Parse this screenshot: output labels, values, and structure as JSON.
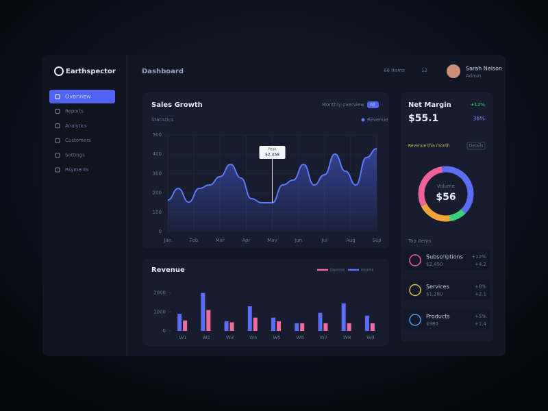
{
  "app": {
    "brand": "Earthspector",
    "page": "Dashboard",
    "status": "86 Items",
    "status_count": "12",
    "user": {
      "name": "Sarah Nelson",
      "role": "Admin"
    }
  },
  "sidebar": [
    "Overview",
    "Reports",
    "Analytics",
    "Customers",
    "Settings",
    "Payments"
  ],
  "summary": {
    "title": "Net Margin",
    "delta": "+12%",
    "value": "$55.1",
    "badge": "36%",
    "caption": "Revenue this month",
    "button": "Details",
    "list_title": "Top items"
  },
  "list": [
    {
      "name": "Subscriptions",
      "sub": "$2,450",
      "value": "+12%",
      "change": "+4.2"
    },
    {
      "name": "Services",
      "sub": "$1,280",
      "value": "+8%",
      "change": "+2.1"
    },
    {
      "name": "Products",
      "sub": "$980",
      "value": "+5%",
      "change": "+1.4"
    }
  ],
  "chart_data": [
    {
      "type": "line",
      "title": "Sales Growth",
      "subtitle": "Statistics",
      "filter": "Monthly overview",
      "button": "All",
      "x": [
        0,
        1,
        2,
        3,
        4,
        5,
        6,
        7,
        8,
        9,
        10,
        11,
        12,
        13,
        14,
        15,
        16,
        17,
        18,
        19,
        20
      ],
      "series": [
        {
          "name": "Revenue",
          "color": "#5b7cfa",
          "values": [
            163,
            223,
            152,
            223,
            241,
            284,
            348,
            277,
            170,
            149,
            149,
            241,
            266,
            348,
            241,
            294,
            401,
            312,
            241,
            383,
            429
          ]
        }
      ],
      "xlim": [
        0,
        20
      ],
      "xticks": [
        {
          "value": 0,
          "label": "Jan"
        },
        {
          "value": 2.5,
          "label": "Feb"
        },
        {
          "value": 5,
          "label": "Mar"
        },
        {
          "value": 7.5,
          "label": "Apr"
        },
        {
          "value": 10,
          "label": "May"
        },
        {
          "value": 12.5,
          "label": "Jun"
        },
        {
          "value": 15,
          "label": "Jul"
        },
        {
          "value": 17.5,
          "label": "Aug"
        },
        {
          "value": 20,
          "label": "Sep"
        }
      ],
      "ylim": [
        0,
        500
      ],
      "yticks": [
        0,
        100,
        200,
        300,
        400,
        500
      ],
      "grid": true,
      "annotation": {
        "x": 10,
        "title": "Peak",
        "text": "$2,458"
      }
    },
    {
      "type": "bar",
      "title": "Revenue",
      "categories": [
        "W1",
        "W2",
        "W3",
        "W4",
        "W5",
        "W6",
        "W7",
        "W8",
        "W9"
      ],
      "series": [
        {
          "name": "Income",
          "color": "#5b6cf5",
          "values": [
            900,
            2000,
            500,
            1300,
            700,
            400,
            950,
            1450,
            800
          ]
        },
        {
          "name": "Expense",
          "color": "#f06a9a",
          "values": [
            550,
            1100,
            450,
            700,
            500,
            400,
            400,
            400,
            400
          ]
        }
      ],
      "ylim": [
        0,
        3000
      ],
      "yticks": [
        0,
        1000,
        2000
      ]
    },
    {
      "type": "pie",
      "title": "Volume",
      "center": "$56",
      "values": [
        40,
        10,
        20,
        30
      ],
      "colors": [
        "#5b6cf5",
        "#3ecf7a",
        "#f2a43a",
        "#f0609a"
      ]
    }
  ]
}
